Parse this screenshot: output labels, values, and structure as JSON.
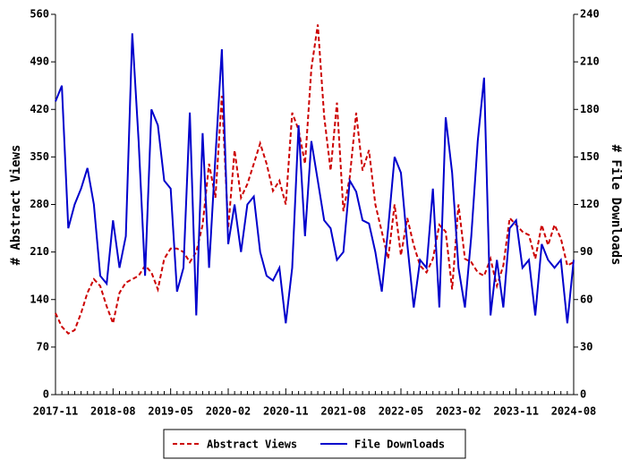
{
  "chart_data": {
    "type": "line",
    "ylabel": "# Abstract Views",
    "y2label": "# File Downloads",
    "categories": [
      "2017-11",
      null,
      null,
      null,
      null,
      null,
      null,
      null,
      null,
      "2018-08",
      null,
      null,
      null,
      null,
      null,
      null,
      null,
      null,
      "2019-05",
      null,
      null,
      null,
      null,
      null,
      null,
      null,
      null,
      "2020-02",
      null,
      null,
      null,
      null,
      null,
      null,
      null,
      null,
      "2020-11",
      null,
      null,
      null,
      null,
      null,
      null,
      null,
      null,
      "2021-08",
      null,
      null,
      null,
      null,
      null,
      null,
      null,
      null,
      "2022-05",
      null,
      null,
      null,
      null,
      null,
      null,
      null,
      null,
      "2023-02",
      null,
      null,
      null,
      null,
      null,
      null,
      null,
      null,
      "2023-11",
      null,
      null,
      null,
      null,
      null,
      null,
      null,
      null,
      "2024-08"
    ],
    "series": [
      {
        "name": "Abstract Views",
        "color": "#cc0000",
        "dash": true,
        "axis": "y",
        "values": [
          120,
          100,
          90,
          95,
          120,
          150,
          170,
          160,
          130,
          105,
          150,
          165,
          170,
          175,
          190,
          180,
          155,
          200,
          215,
          215,
          210,
          195,
          210,
          250,
          340,
          290,
          440,
          245,
          360,
          290,
          310,
          340,
          370,
          340,
          300,
          315,
          280,
          415,
          390,
          340,
          480,
          545,
          410,
          330,
          430,
          270,
          320,
          415,
          330,
          360,
          280,
          240,
          200,
          280,
          205,
          260,
          220,
          190,
          180,
          200,
          250,
          240,
          155,
          280,
          200,
          195,
          180,
          175,
          200,
          160,
          190,
          260,
          250,
          240,
          235,
          200,
          250,
          220,
          250,
          230,
          190,
          195
        ]
      },
      {
        "name": "File Downloads",
        "color": "#0000cc",
        "dash": false,
        "axis": "y2",
        "values": [
          185,
          195,
          105,
          120,
          130,
          143,
          120,
          75,
          70,
          110,
          80,
          100,
          228,
          160,
          75,
          180,
          170,
          135,
          130,
          65,
          80,
          178,
          50,
          165,
          80,
          150,
          218,
          95,
          120,
          90,
          120,
          125,
          90,
          75,
          72,
          80,
          45,
          80,
          170,
          100,
          160,
          135,
          110,
          105,
          85,
          90,
          135,
          128,
          110,
          108,
          90,
          65,
          105,
          150,
          140,
          95,
          55,
          85,
          80,
          130,
          55,
          175,
          140,
          80,
          55,
          100,
          160,
          200,
          50,
          85,
          55,
          105,
          110,
          80,
          85,
          50,
          95,
          85,
          80,
          85,
          45,
          85
        ]
      }
    ],
    "ylim": [
      0,
      560
    ],
    "yticks": [
      0,
      70,
      140,
      210,
      280,
      350,
      420,
      490,
      560
    ],
    "y2lim": [
      0,
      240
    ],
    "y2ticks": [
      0,
      30,
      60,
      90,
      120,
      150,
      180,
      210,
      240
    ],
    "grid": false,
    "legend": "bottom"
  }
}
